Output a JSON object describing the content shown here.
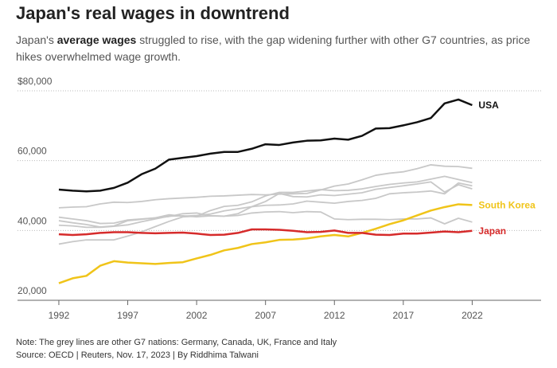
{
  "chart_data": {
    "type": "line",
    "title": "Japan's real wages in downtrend",
    "subtitle": [
      "Japan's ",
      "average wages",
      " struggled to rise, with the gap widening further with other G7 countries, as price hikes overwhelmed wage growth."
    ],
    "x": [
      1992,
      1993,
      1994,
      1995,
      1996,
      1997,
      1998,
      1999,
      2000,
      2001,
      2002,
      2003,
      2004,
      2005,
      2006,
      2007,
      2008,
      2009,
      2010,
      2011,
      2012,
      2013,
      2014,
      2015,
      2016,
      2017,
      2018,
      2019,
      2020,
      2021,
      2022
    ],
    "xlim": [
      1989,
      2027
    ],
    "xticks": [
      1992,
      1997,
      2002,
      2007,
      2012,
      2017,
      2022
    ],
    "ylim": [
      20000,
      80000
    ],
    "yticks": [
      {
        "value": 20000,
        "label": "20,000"
      },
      {
        "value": 40000,
        "label": "40,000"
      },
      {
        "value": 60000,
        "label": "60,000"
      },
      {
        "value": 80000,
        "label": "$80,000"
      }
    ],
    "grid": true,
    "series": [
      {
        "color": "#c8c8c8",
        "values": [
          46500,
          46700,
          46800,
          47600,
          48100,
          48000,
          48300,
          48800,
          49100,
          49300,
          49500,
          49800,
          49900,
          50100,
          50300,
          50200,
          50400,
          50500,
          50600,
          51600,
          52700,
          53300,
          54500,
          55800,
          56400,
          56800,
          57700,
          58800,
          58400,
          58300,
          57800
        ]
      },
      {
        "color": "#c8c8c8",
        "values": [
          43800,
          43300,
          42800,
          42000,
          42100,
          43000,
          43300,
          43600,
          44500,
          44100,
          44300,
          44700,
          45600,
          46200,
          46800,
          47200,
          47300,
          47600,
          48400,
          48100,
          47800,
          48300,
          48600,
          49200,
          50500,
          50800,
          51000,
          51300,
          50500,
          53600,
          52800
        ]
      },
      {
        "color": "#c8c8c8",
        "values": [
          42800,
          42200,
          41700,
          41000,
          41300,
          42800,
          43200,
          43600,
          44000,
          44800,
          45000,
          44200,
          44100,
          44800,
          46800,
          48300,
          50600,
          49700,
          49600,
          50200,
          50000,
          50400,
          50800,
          51800,
          52300,
          52800,
          53300,
          53900,
          51000,
          53100,
          51900
        ]
      },
      {
        "color": "#c8c8c8",
        "values": [
          36100,
          36800,
          37300,
          37300,
          37300,
          38400,
          39600,
          41100,
          42600,
          43900,
          44100,
          45700,
          46900,
          47200,
          48200,
          49900,
          50900,
          50900,
          51300,
          51700,
          51400,
          51500,
          51900,
          52600,
          53200,
          53600,
          53900,
          54700,
          55500,
          54600,
          53700
        ]
      },
      {
        "color": "#c8c8c8",
        "values": [
          41500,
          41300,
          40900,
          40900,
          41200,
          41600,
          42500,
          43300,
          44100,
          44200,
          43900,
          44200,
          44100,
          44300,
          45000,
          45300,
          45400,
          45100,
          45400,
          45300,
          43300,
          43100,
          43200,
          43200,
          43100,
          43300,
          43300,
          43600,
          41900,
          43500,
          42400
        ]
      },
      {
        "name": "South Korea",
        "color": "#f0c419",
        "values": [
          24900,
          26300,
          27000,
          29900,
          31200,
          30800,
          30600,
          30400,
          30700,
          30900,
          32000,
          33000,
          34300,
          35000,
          36100,
          36600,
          37300,
          37400,
          37700,
          38300,
          38700,
          38300,
          39300,
          40500,
          41800,
          42900,
          44300,
          45700,
          46700,
          47500,
          47300
        ]
      },
      {
        "name": "Japan",
        "color": "#d62b2b",
        "values": [
          38900,
          38700,
          38900,
          39300,
          39500,
          39500,
          39300,
          39200,
          39300,
          39400,
          39100,
          38700,
          38800,
          39300,
          40300,
          40300,
          40200,
          39900,
          39500,
          39600,
          40000,
          39300,
          39300,
          38800,
          38700,
          39100,
          39100,
          39400,
          39700,
          39500,
          39900
        ]
      },
      {
        "name": "USA",
        "color": "#111111",
        "values": [
          51700,
          51400,
          51200,
          51400,
          52200,
          53700,
          56100,
          57700,
          60300,
          60800,
          61300,
          62000,
          62500,
          62500,
          63400,
          64700,
          64500,
          65200,
          65700,
          65800,
          66300,
          66000,
          67100,
          69200,
          69300,
          70100,
          71000,
          72200,
          76400,
          77500,
          75900
        ]
      }
    ],
    "note": "Note: The grey lines are other G7 nations: Germany, Canada, UK, France and Italy",
    "source": "Source: OECD | Reuters, Nov. 17, 2023 | By Riddhima Talwani"
  }
}
